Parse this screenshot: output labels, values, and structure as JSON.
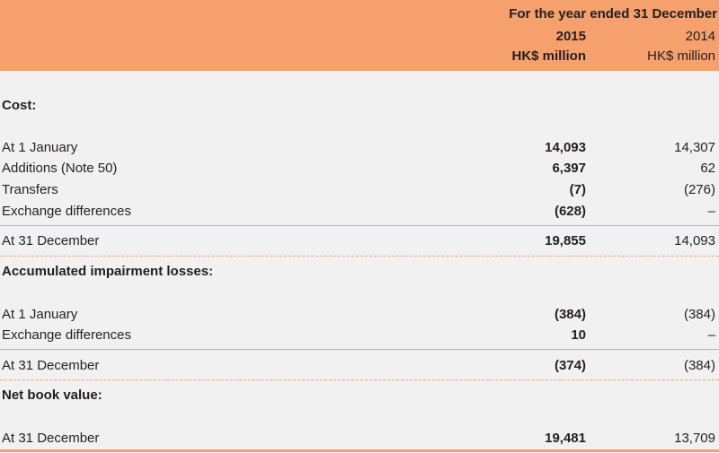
{
  "header": {
    "period": "For the year ended 31 December",
    "year_current": "2015",
    "year_prior": "2014",
    "unit_current": "HK$ million",
    "unit_prior": "HK$ million"
  },
  "sections": {
    "cost": {
      "title": "Cost:",
      "rows": [
        {
          "label": "At 1 January",
          "v2015": "14,093",
          "v2014": "14,307"
        },
        {
          "label": "Additions (Note 50)",
          "v2015": "6,397",
          "v2014": "62"
        },
        {
          "label": "Transfers",
          "v2015": "(7)",
          "v2014": "(276)"
        },
        {
          "label": "Exchange differences",
          "v2015": "(628)",
          "v2014": "–"
        }
      ],
      "total": {
        "label": "At 31 December",
        "v2015": "19,855",
        "v2014": "14,093"
      }
    },
    "impairment": {
      "title": "Accumulated impairment losses:",
      "rows": [
        {
          "label": "At 1 January",
          "v2015": "(384)",
          "v2014": "(384)"
        },
        {
          "label": "Exchange differences",
          "v2015": "10",
          "v2014": "–"
        }
      ],
      "total": {
        "label": "At 31 December",
        "v2015": "(374)",
        "v2014": "(384)"
      }
    },
    "nbv": {
      "title": "Net book value:",
      "total": {
        "label": "At 31 December",
        "v2015": "19,481",
        "v2014": "13,709"
      }
    }
  }
}
